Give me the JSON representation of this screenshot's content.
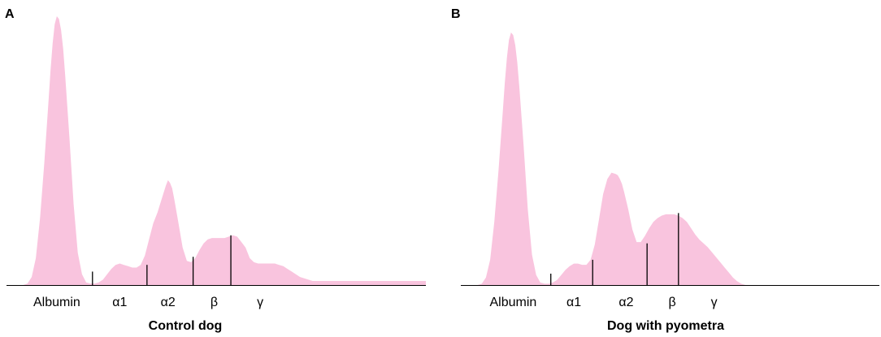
{
  "colors": {
    "fill": "#f9c4de",
    "baseline": "#000000"
  },
  "chart_data": [
    {
      "panel": "A",
      "type": "area",
      "title": "Control dog",
      "xlim": [
        0,
        100
      ],
      "ylim": [
        0,
        100
      ],
      "categories": [
        "Albumin",
        "α1",
        "α2",
        "β",
        "γ"
      ],
      "category_centers": [
        12,
        27,
        38.5,
        49.5,
        60.5
      ],
      "dividers": [
        {
          "x": 20.5,
          "top": 5
        },
        {
          "x": 33.5,
          "top": 7.5
        },
        {
          "x": 44.5,
          "top": 10.5
        },
        {
          "x": 53.5,
          "top": 18.5
        }
      ],
      "series": [
        {
          "x": [
            0,
            2,
            4,
            5,
            6,
            7,
            8,
            9,
            10,
            10.5,
            11,
            11.5,
            12,
            12.5,
            13,
            13.5,
            14,
            15,
            16,
            17,
            18,
            19,
            20,
            21,
            22,
            23,
            24,
            25,
            26,
            27,
            28,
            29,
            30,
            31,
            32,
            33,
            34,
            35,
            36,
            37,
            38,
            38.5,
            39,
            39.5,
            40,
            41,
            42,
            43,
            44,
            45,
            46,
            47,
            48,
            49,
            50,
            51,
            52,
            53,
            54,
            55,
            56,
            57,
            58,
            59,
            60,
            61,
            62,
            63,
            64,
            65,
            66,
            67,
            68,
            69,
            70,
            71,
            72,
            73,
            74,
            75,
            76,
            77,
            78,
            80,
            85,
            90,
            95,
            100
          ],
          "y": [
            0,
            0,
            0,
            0.5,
            3,
            10,
            25,
            45,
            68,
            80,
            90,
            97,
            100,
            99,
            95,
            88,
            78,
            55,
            30,
            12,
            4,
            1,
            0.5,
            0.5,
            1,
            2,
            4,
            6,
            7.5,
            8,
            7.5,
            7,
            6.5,
            6.5,
            7.5,
            11,
            17,
            23,
            27,
            32,
            37,
            39,
            38,
            36,
            32,
            23,
            14,
            9,
            8.5,
            10,
            13,
            15.5,
            17,
            17.5,
            17.5,
            17.5,
            17.5,
            18,
            18.5,
            18,
            16,
            14,
            10,
            8.5,
            8,
            8,
            8,
            8,
            8,
            7.5,
            7,
            6,
            5,
            4,
            3,
            2.5,
            2,
            1.5,
            1.5,
            1.5,
            1.5,
            1.5,
            1.5,
            1.5,
            1.5,
            1.5,
            1.5,
            1.5
          ]
        }
      ]
    },
    {
      "panel": "B",
      "type": "area",
      "title": "Dog with pyometra",
      "xlim": [
        0,
        100
      ],
      "ylim": [
        0,
        100
      ],
      "categories": [
        "Albumin",
        "α1",
        "α2",
        "β",
        "γ"
      ],
      "category_centers": [
        12.5,
        27,
        39.5,
        50.5,
        60.5
      ],
      "dividers": [
        {
          "x": 21.5,
          "top": 4.5
        },
        {
          "x": 31.5,
          "top": 10
        },
        {
          "x": 44.5,
          "top": 16.5
        },
        {
          "x": 52,
          "top": 28.5
        }
      ],
      "series": [
        {
          "x": [
            0,
            2,
            4,
            5,
            6,
            7,
            8,
            9,
            10,
            10.5,
            11,
            11.5,
            12,
            12.5,
            13,
            13.5,
            14,
            15,
            16,
            17,
            18,
            19,
            20,
            21,
            22,
            23,
            24,
            25,
            26,
            27,
            28,
            29,
            30,
            31,
            32,
            33,
            34,
            35,
            36,
            37,
            37.5,
            38,
            38.5,
            39,
            40,
            41,
            42,
            43,
            44,
            45,
            46,
            47,
            48,
            49,
            50,
            51,
            52,
            53,
            54,
            55,
            56,
            57,
            58,
            59,
            60,
            61,
            62,
            63,
            64,
            65,
            66,
            67,
            68,
            69,
            70,
            71,
            72,
            73,
            74,
            75,
            76,
            78,
            80,
            85,
            90,
            95,
            100
          ],
          "y": [
            0,
            0,
            0,
            0.5,
            3,
            10,
            25,
            45,
            68,
            80,
            90,
            97,
            100,
            99,
            95,
            88,
            78,
            55,
            30,
            12,
            4,
            1,
            0.5,
            0.5,
            1,
            2,
            4,
            6,
            7.5,
            8.5,
            8.5,
            8,
            8,
            10,
            16,
            26,
            36,
            42,
            44.5,
            44,
            43.5,
            42,
            40,
            37,
            30,
            22,
            17,
            17,
            19.5,
            22.5,
            25,
            26.5,
            27.5,
            28,
            28,
            28,
            27.5,
            26.5,
            25,
            22.5,
            20,
            18,
            16.5,
            15,
            13,
            11,
            9,
            7,
            5,
            3,
            1.5,
            0.5,
            0,
            0,
            0,
            0,
            0,
            0,
            0,
            0,
            0,
            0,
            0,
            0,
            0,
            0,
            0
          ]
        }
      ]
    }
  ]
}
